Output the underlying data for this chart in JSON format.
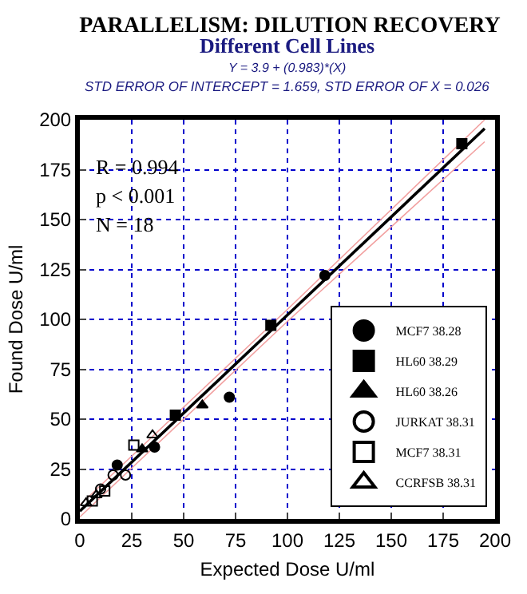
{
  "chart_data": {
    "type": "scatter",
    "title": "PARALLELISM: DILUTION RECOVERY",
    "subtitle": "Different Cell Lines",
    "annotations": [
      "Y = 3.9 + (0.983)*(X)",
      "STD ERROR OF INTERCEPT = 1.659, STD ERROR OF X = 0.026",
      "R = 0.994",
      "p < 0.001",
      "N = 18"
    ],
    "xlabel": "Expected Dose U/ml",
    "ylabel": "Found Dose U/ml",
    "xlim": [
      0,
      200
    ],
    "xticks": [
      0,
      25,
      50,
      75,
      100,
      125,
      150,
      175,
      200
    ],
    "ylim": [
      0,
      200
    ],
    "yticks": [
      0,
      25,
      50,
      75,
      100,
      125,
      150,
      175,
      200
    ],
    "grid": true,
    "legend": "bottom right",
    "series": [
      {
        "name": "MCF7 38.28",
        "color": "#000000",
        "marker": "circle",
        "x": [
          18,
          36,
          72,
          118
        ],
        "values": [
          27,
          36,
          61,
          122
        ]
      },
      {
        "name": "HL60 38.29",
        "color": "#000000",
        "marker": "square",
        "x": [
          46,
          92,
          184
        ],
        "values": [
          52,
          97,
          188
        ]
      },
      {
        "name": "HL60 38.26",
        "color": "#000000",
        "marker": "triangle",
        "x": [
          30,
          59
        ],
        "values": [
          35,
          57
        ]
      },
      {
        "name": "JURKAT 38.31",
        "color": "#000000",
        "marker": "circle-open",
        "x": [
          10,
          16,
          22
        ],
        "values": [
          15,
          22,
          22
        ]
      },
      {
        "name": "MCF7 38.31",
        "color": "#000000",
        "marker": "square-open",
        "x": [
          6,
          12,
          26
        ],
        "values": [
          9,
          14,
          37
        ]
      },
      {
        "name": "CCRFSB 38.31",
        "color": "#000000",
        "marker": "triangle-open",
        "x": [
          3,
          8,
          35
        ],
        "values": [
          8,
          12,
          42
        ]
      },
      {
        "type": "line",
        "color": "#f2a0a0",
        "x": [
          0,
          100,
          195
        ],
        "values": [
          7,
          105,
          200
        ]
      },
      {
        "type": "line",
        "color": "#f2a0a0",
        "x": [
          0,
          100,
          195
        ],
        "values": [
          1,
          99,
          189
        ]
      },
      {
        "type": "line",
        "color": "#000000",
        "x": [
          0,
          100,
          195
        ],
        "values": [
          3.9,
          102.2,
          195.6
        ]
      }
    ]
  }
}
